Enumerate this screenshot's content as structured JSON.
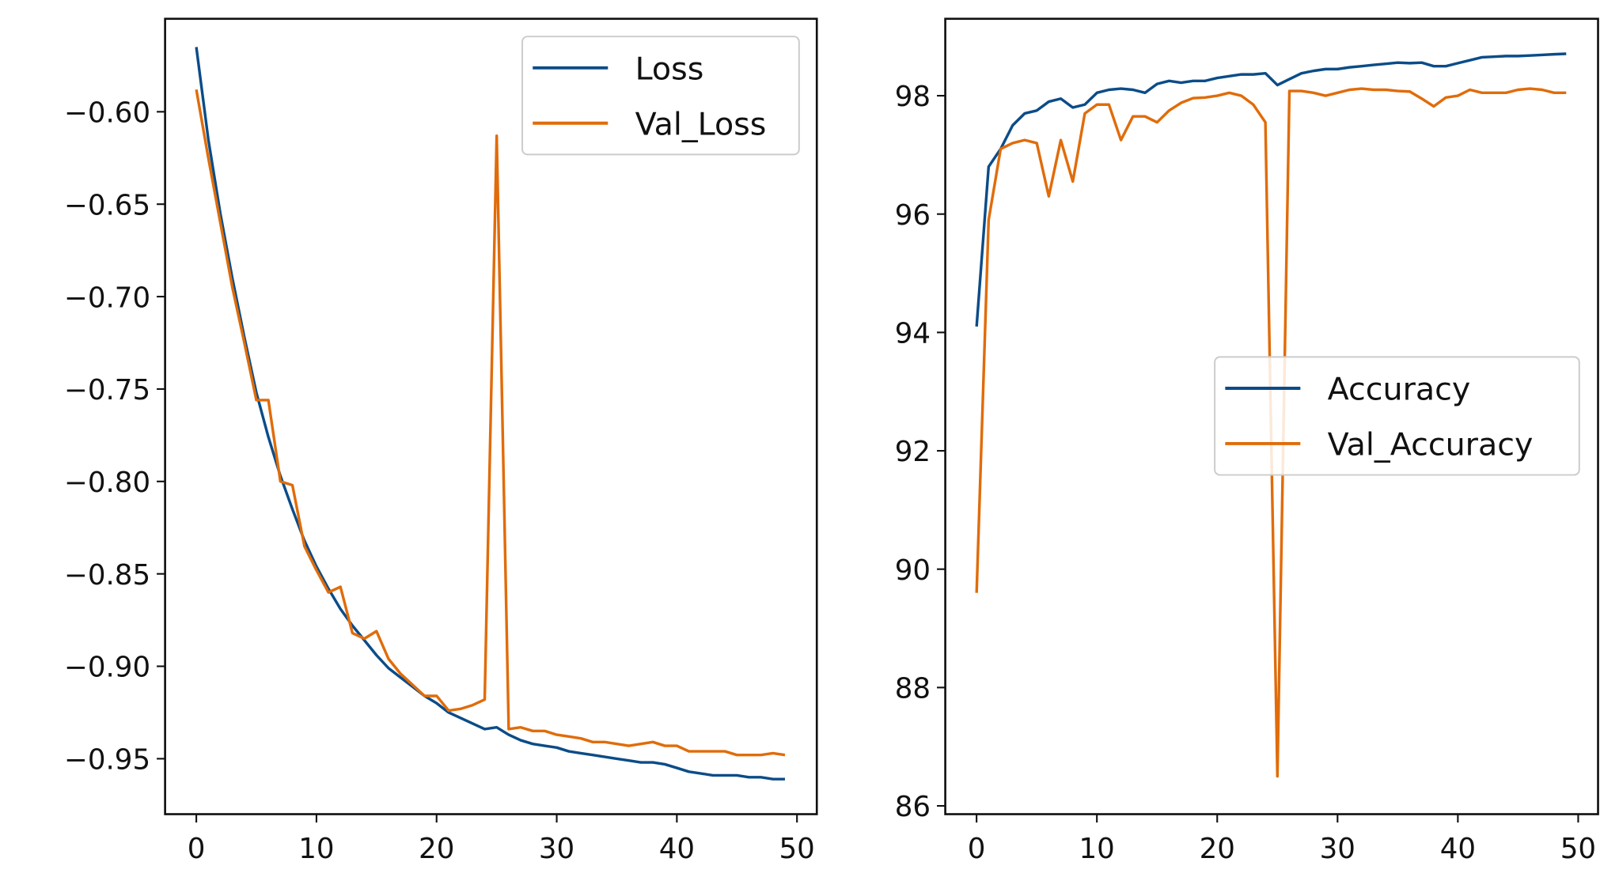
{
  "colors": {
    "loss": "#0b4c88",
    "val": "#e06c0a"
  },
  "chart_data": [
    {
      "type": "line",
      "title": "",
      "xlabel": "",
      "ylabel": "",
      "xlim": [
        -2.6,
        51.65
      ],
      "ylim": [
        -0.98,
        -0.5497
      ],
      "xticks": [
        0,
        10,
        20,
        30,
        40,
        50
      ],
      "xtick_labels": [
        "0",
        "10",
        "20",
        "30",
        "40",
        "50"
      ],
      "yticks": [
        -0.6,
        -0.65,
        -0.7,
        -0.75,
        -0.8,
        -0.85,
        -0.9,
        -0.95
      ],
      "ytick_labels": [
        "−0.60",
        "−0.65",
        "−0.70",
        "−0.75",
        "−0.80",
        "−0.85",
        "−0.90",
        "−0.95"
      ],
      "grid": false,
      "legend": "top-right",
      "series": [
        {
          "name": "Loss",
          "color": "#0b4c88",
          "values": [
            -0.565,
            -0.615,
            -0.655,
            -0.69,
            -0.722,
            -0.752,
            -0.776,
            -0.797,
            -0.815,
            -0.832,
            -0.846,
            -0.858,
            -0.869,
            -0.878,
            -0.886,
            -0.894,
            -0.901,
            -0.906,
            -0.911,
            -0.916,
            -0.92,
            -0.925,
            -0.928,
            -0.931,
            -0.934,
            -0.933,
            -0.937,
            -0.94,
            -0.942,
            -0.943,
            -0.944,
            -0.946,
            -0.947,
            -0.948,
            -0.949,
            -0.95,
            -0.951,
            -0.952,
            -0.952,
            -0.953,
            -0.955,
            -0.957,
            -0.958,
            -0.959,
            -0.959,
            -0.959,
            -0.96,
            -0.96,
            -0.961,
            -0.961
          ]
        },
        {
          "name": "Val_Loss",
          "color": "#e06c0a",
          "values": [
            -0.588,
            -0.625,
            -0.66,
            -0.695,
            -0.725,
            -0.756,
            -0.756,
            -0.8,
            -0.802,
            -0.835,
            -0.848,
            -0.86,
            -0.857,
            -0.882,
            -0.885,
            -0.881,
            -0.896,
            -0.904,
            -0.91,
            -0.916,
            -0.916,
            -0.924,
            -0.923,
            -0.921,
            -0.918,
            -0.613,
            -0.934,
            -0.933,
            -0.935,
            -0.935,
            -0.937,
            -0.938,
            -0.939,
            -0.941,
            -0.941,
            -0.942,
            -0.943,
            -0.942,
            -0.941,
            -0.943,
            -0.943,
            -0.946,
            -0.946,
            -0.946,
            -0.946,
            -0.948,
            -0.948,
            -0.948,
            -0.947,
            -0.948
          ]
        }
      ]
    },
    {
      "type": "line",
      "title": "",
      "xlabel": "",
      "ylabel": "",
      "xlim": [
        -2.6,
        51.65
      ],
      "ylim": [
        85.86,
        99.3
      ],
      "xticks": [
        0,
        10,
        20,
        30,
        40,
        50
      ],
      "xtick_labels": [
        "0",
        "10",
        "20",
        "30",
        "40",
        "50"
      ],
      "yticks": [
        86,
        88,
        90,
        92,
        94,
        96,
        98
      ],
      "ytick_labels": [
        "86",
        "88",
        "90",
        "92",
        "94",
        "96",
        "98"
      ],
      "grid": false,
      "legend": "center-right",
      "series": [
        {
          "name": "Accuracy",
          "color": "#0b4c88",
          "values": [
            94.1,
            96.8,
            97.1,
            97.5,
            97.7,
            97.75,
            97.9,
            97.95,
            97.8,
            97.85,
            98.05,
            98.1,
            98.12,
            98.1,
            98.05,
            98.2,
            98.25,
            98.22,
            98.25,
            98.25,
            98.3,
            98.33,
            98.36,
            98.36,
            98.38,
            98.18,
            98.28,
            98.38,
            98.42,
            98.45,
            98.45,
            98.48,
            98.5,
            98.52,
            98.54,
            98.56,
            98.55,
            98.56,
            98.5,
            98.5,
            98.55,
            98.6,
            98.65,
            98.66,
            98.67,
            98.67,
            98.68,
            98.69,
            98.7,
            98.71
          ]
        },
        {
          "name": "Val_Accuracy",
          "color": "#e06c0a",
          "values": [
            89.6,
            95.9,
            97.1,
            97.2,
            97.25,
            97.2,
            96.3,
            97.25,
            96.55,
            97.7,
            97.85,
            97.85,
            97.25,
            97.65,
            97.65,
            97.55,
            97.75,
            97.88,
            97.96,
            97.97,
            98.0,
            98.05,
            98.0,
            97.85,
            97.55,
            86.5,
            98.08,
            98.08,
            98.05,
            98.0,
            98.05,
            98.1,
            98.12,
            98.1,
            98.1,
            98.08,
            98.07,
            97.95,
            97.82,
            97.97,
            98.0,
            98.1,
            98.05,
            98.05,
            98.05,
            98.1,
            98.12,
            98.1,
            98.05,
            98.05
          ]
        }
      ]
    }
  ]
}
